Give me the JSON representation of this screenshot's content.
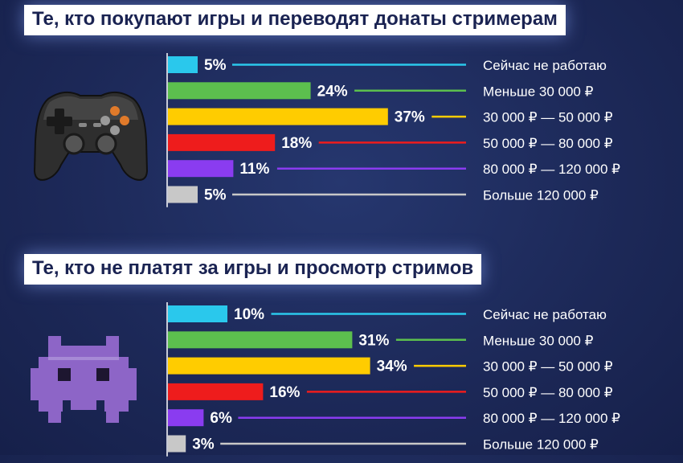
{
  "chart_data": [
    {
      "type": "bar",
      "orientation": "horizontal",
      "title": "Те, кто покупают игры и переводят донаты стримерам",
      "categories": [
        "Сейчас не работаю",
        "Меньше 30 000 ₽",
        "30 000 ₽ — 50 000 ₽",
        "50 000 ₽ — 80 000 ₽",
        "80 000 ₽ — 120 000 ₽",
        "Больше 120 000 ₽"
      ],
      "values": [
        5,
        24,
        37,
        18,
        11,
        5
      ],
      "value_labels": [
        "5%",
        "24%",
        "37%",
        "18%",
        "11%",
        "5%"
      ],
      "colors": [
        "#2ac8ec",
        "#5cbf4e",
        "#ffcc00",
        "#ee1c1c",
        "#8a3cf0",
        "#c8c8c8"
      ]
    },
    {
      "type": "bar",
      "orientation": "horizontal",
      "title": "Те, кто не платят за игры и просмотр стримов",
      "categories": [
        "Сейчас не работаю",
        "Меньше 30 000 ₽",
        "30 000 ₽ — 50 000 ₽",
        "50 000 ₽ — 80 000 ₽",
        "80 000 ₽ — 120 000 ₽",
        "Больше 120 000 ₽"
      ],
      "values": [
        10,
        31,
        34,
        16,
        6,
        3
      ],
      "value_labels": [
        "10%",
        "31%",
        "34%",
        "16%",
        "6%",
        "3%"
      ],
      "colors": [
        "#2ac8ec",
        "#5cbf4e",
        "#ffcc00",
        "#ee1c1c",
        "#8a3cf0",
        "#c8c8c8"
      ]
    }
  ],
  "icons": [
    "gamepad-icon",
    "space-invader-icon"
  ]
}
